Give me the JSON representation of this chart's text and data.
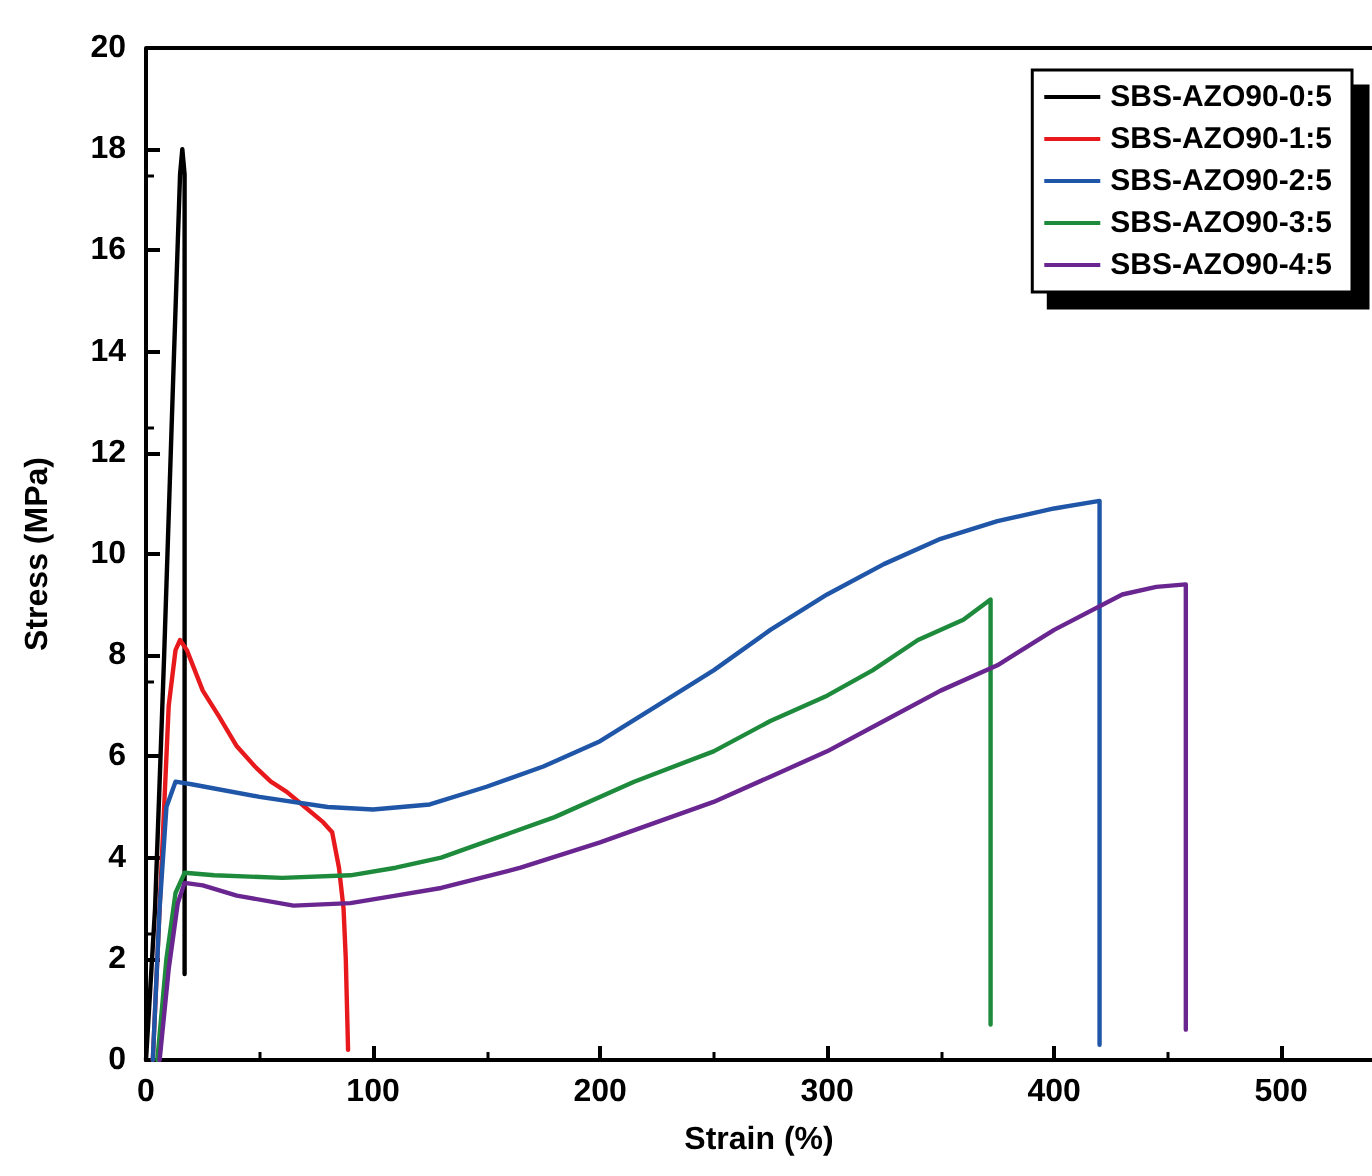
{
  "chart_data": {
    "type": "line",
    "xlabel": "Strain (%)",
    "ylabel": "Stress (MPa)",
    "xlim": [
      0,
      540
    ],
    "xticks": [
      0,
      100,
      200,
      300,
      400,
      500
    ],
    "ylim": [
      0,
      20
    ],
    "yticks": [
      0,
      2,
      4,
      6,
      8,
      10,
      12,
      14,
      16,
      18,
      20
    ],
    "grid": false,
    "legend": "top right",
    "marker": "none",
    "line_style": "solid",
    "series": [
      {
        "name": "SBS-AZO90-0:5",
        "color": "#000000",
        "x": [
          0,
          4,
          8,
          12,
          15,
          16,
          17,
          17
        ],
        "values": [
          0,
          3,
          8,
          13.5,
          17.5,
          18,
          17.5,
          1.7
        ]
      },
      {
        "name": "SBS-AZO90-1:5",
        "color": "#e8191c",
        "x": [
          3,
          7,
          10,
          13,
          15,
          18,
          25,
          32,
          40,
          48,
          55,
          62,
          70,
          78,
          82,
          85,
          87,
          88,
          89
        ],
        "values": [
          0,
          4,
          7,
          8.1,
          8.3,
          8.1,
          7.3,
          6.8,
          6.2,
          5.8,
          5.5,
          5.3,
          5.0,
          4.7,
          4.5,
          3.8,
          3,
          2,
          0.2
        ]
      },
      {
        "name": "SBS-AZO90-2:5",
        "color": "#1f56a8",
        "x": [
          3,
          6,
          9,
          13,
          20,
          50,
          80,
          100,
          125,
          150,
          175,
          200,
          225,
          250,
          275,
          300,
          325,
          350,
          375,
          400,
          420,
          420
        ],
        "values": [
          0,
          3,
          5,
          5.5,
          5.45,
          5.2,
          5.0,
          4.95,
          5.05,
          5.4,
          5.8,
          6.3,
          7.0,
          7.7,
          8.5,
          9.2,
          9.8,
          10.3,
          10.65,
          10.9,
          11.05,
          0.3
        ]
      },
      {
        "name": "SBS-AZO90-3:5",
        "color": "#1e8a3c",
        "x": [
          5,
          9,
          13,
          17,
          30,
          60,
          90,
          110,
          130,
          155,
          180,
          215,
          250,
          275,
          300,
          320,
          340,
          360,
          372,
          372
        ],
        "values": [
          0,
          2,
          3.3,
          3.7,
          3.65,
          3.6,
          3.65,
          3.8,
          4.0,
          4.4,
          4.8,
          5.5,
          6.1,
          6.7,
          7.2,
          7.7,
          8.3,
          8.7,
          9.1,
          0.7
        ]
      },
      {
        "name": "SBS-AZO90-4:5",
        "color": "#6a2690",
        "x": [
          6,
          10,
          14,
          17,
          25,
          40,
          65,
          90,
          110,
          130,
          165,
          200,
          225,
          250,
          275,
          300,
          325,
          350,
          375,
          400,
          430,
          445,
          458,
          458
        ],
        "values": [
          0,
          1.8,
          3.1,
          3.5,
          3.45,
          3.25,
          3.05,
          3.1,
          3.25,
          3.4,
          3.8,
          4.3,
          4.7,
          5.1,
          5.6,
          6.1,
          6.7,
          7.3,
          7.8,
          8.5,
          9.2,
          9.35,
          9.4,
          0.6
        ]
      }
    ]
  }
}
